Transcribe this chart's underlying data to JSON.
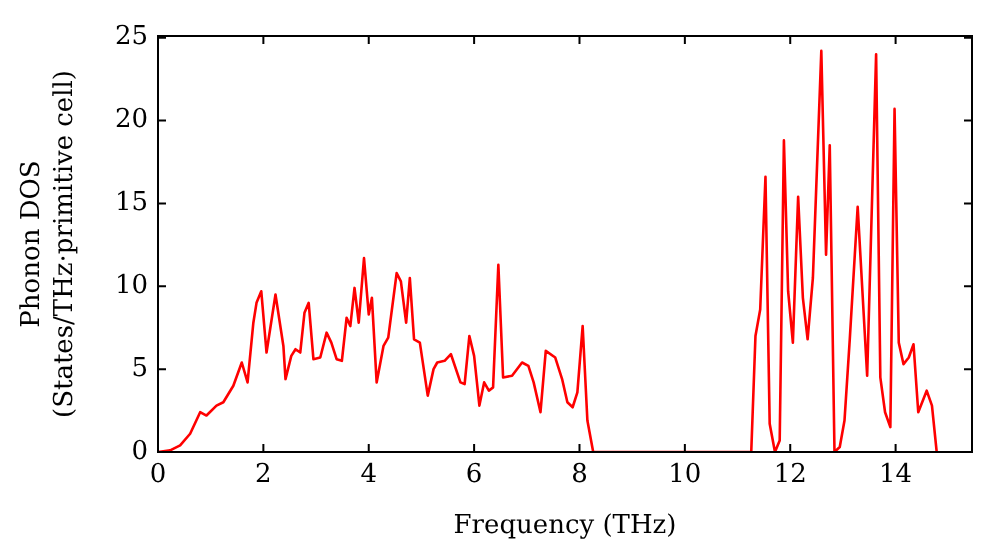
{
  "chart_data": {
    "type": "line",
    "xlabel": "Frequency (THz)",
    "ylabel": "Phonon DOS\n(States/THz·primitive cell)",
    "xlim": [
      0,
      15.45
    ],
    "ylim": [
      0,
      25.1
    ],
    "xticks": [
      0,
      2,
      4,
      6,
      8,
      10,
      12,
      14
    ],
    "yticks": [
      0,
      5,
      10,
      15,
      20,
      25
    ],
    "grid": false,
    "legend": false,
    "marker": "none",
    "line_style": "solid",
    "series": [
      {
        "color": "#ff0000",
        "x": [
          0,
          0.23,
          0.42,
          0.61,
          0.8,
          0.92,
          1.11,
          1.24,
          1.43,
          1.59,
          1.7,
          1.81,
          1.87,
          1.96,
          2.06,
          2.23,
          2.38,
          2.42,
          2.53,
          2.61,
          2.7,
          2.78,
          2.86,
          2.95,
          3.08,
          3.2,
          3.29,
          3.39,
          3.49,
          3.58,
          3.65,
          3.73,
          3.81,
          3.91,
          4.0,
          4.06,
          4.15,
          4.28,
          4.37,
          4.53,
          4.61,
          4.71,
          4.78,
          4.86,
          4.97,
          5.12,
          5.23,
          5.3,
          5.44,
          5.56,
          5.74,
          5.82,
          5.91,
          6.0,
          6.1,
          6.19,
          6.28,
          6.36,
          6.46,
          6.55,
          6.72,
          6.91,
          7.03,
          7.13,
          7.26,
          7.36,
          7.54,
          7.67,
          7.77,
          7.87,
          7.96,
          8.06,
          8.15,
          8.26,
          11.26,
          11.34,
          11.43,
          11.53,
          11.61,
          11.71,
          11.8,
          11.88,
          11.96,
          12.05,
          12.15,
          12.24,
          12.33,
          12.43,
          12.59,
          12.68,
          12.75,
          12.84,
          12.94,
          13.03,
          13.13,
          13.28,
          13.46,
          13.63,
          13.71,
          13.8,
          13.9,
          13.98,
          14.06,
          14.15,
          14.25,
          14.34,
          14.43,
          14.59,
          14.69,
          14.78
        ],
        "values": [
          0,
          0.1,
          0.4,
          1.1,
          2.4,
          2.2,
          2.8,
          3.0,
          4.0,
          5.4,
          4.2,
          7.8,
          9.0,
          9.7,
          6.0,
          9.5,
          6.4,
          4.4,
          5.8,
          6.2,
          6.0,
          8.4,
          9.0,
          5.6,
          5.7,
          7.2,
          6.6,
          5.6,
          5.5,
          8.1,
          7.6,
          9.9,
          7.8,
          11.7,
          8.3,
          9.3,
          4.2,
          6.4,
          6.9,
          10.8,
          10.3,
          7.8,
          10.5,
          6.8,
          6.6,
          3.4,
          5.0,
          5.4,
          5.5,
          5.9,
          4.2,
          4.1,
          7.0,
          5.8,
          2.8,
          4.2,
          3.7,
          3.9,
          11.3,
          4.5,
          4.6,
          5.4,
          5.2,
          4.2,
          2.4,
          6.1,
          5.7,
          4.4,
          3.0,
          2.7,
          3.6,
          7.6,
          1.9,
          0,
          0,
          7.0,
          8.6,
          16.6,
          1.7,
          0,
          0.7,
          18.8,
          9.7,
          6.6,
          15.4,
          9.3,
          6.8,
          10.5,
          24.2,
          11.9,
          18.5,
          0,
          0.3,
          1.9,
          6.8,
          14.8,
          4.6,
          24.0,
          4.5,
          2.4,
          1.5,
          20.7,
          6.6,
          5.3,
          5.7,
          6.5,
          2.4,
          3.7,
          2.8,
          0
        ]
      }
    ]
  }
}
